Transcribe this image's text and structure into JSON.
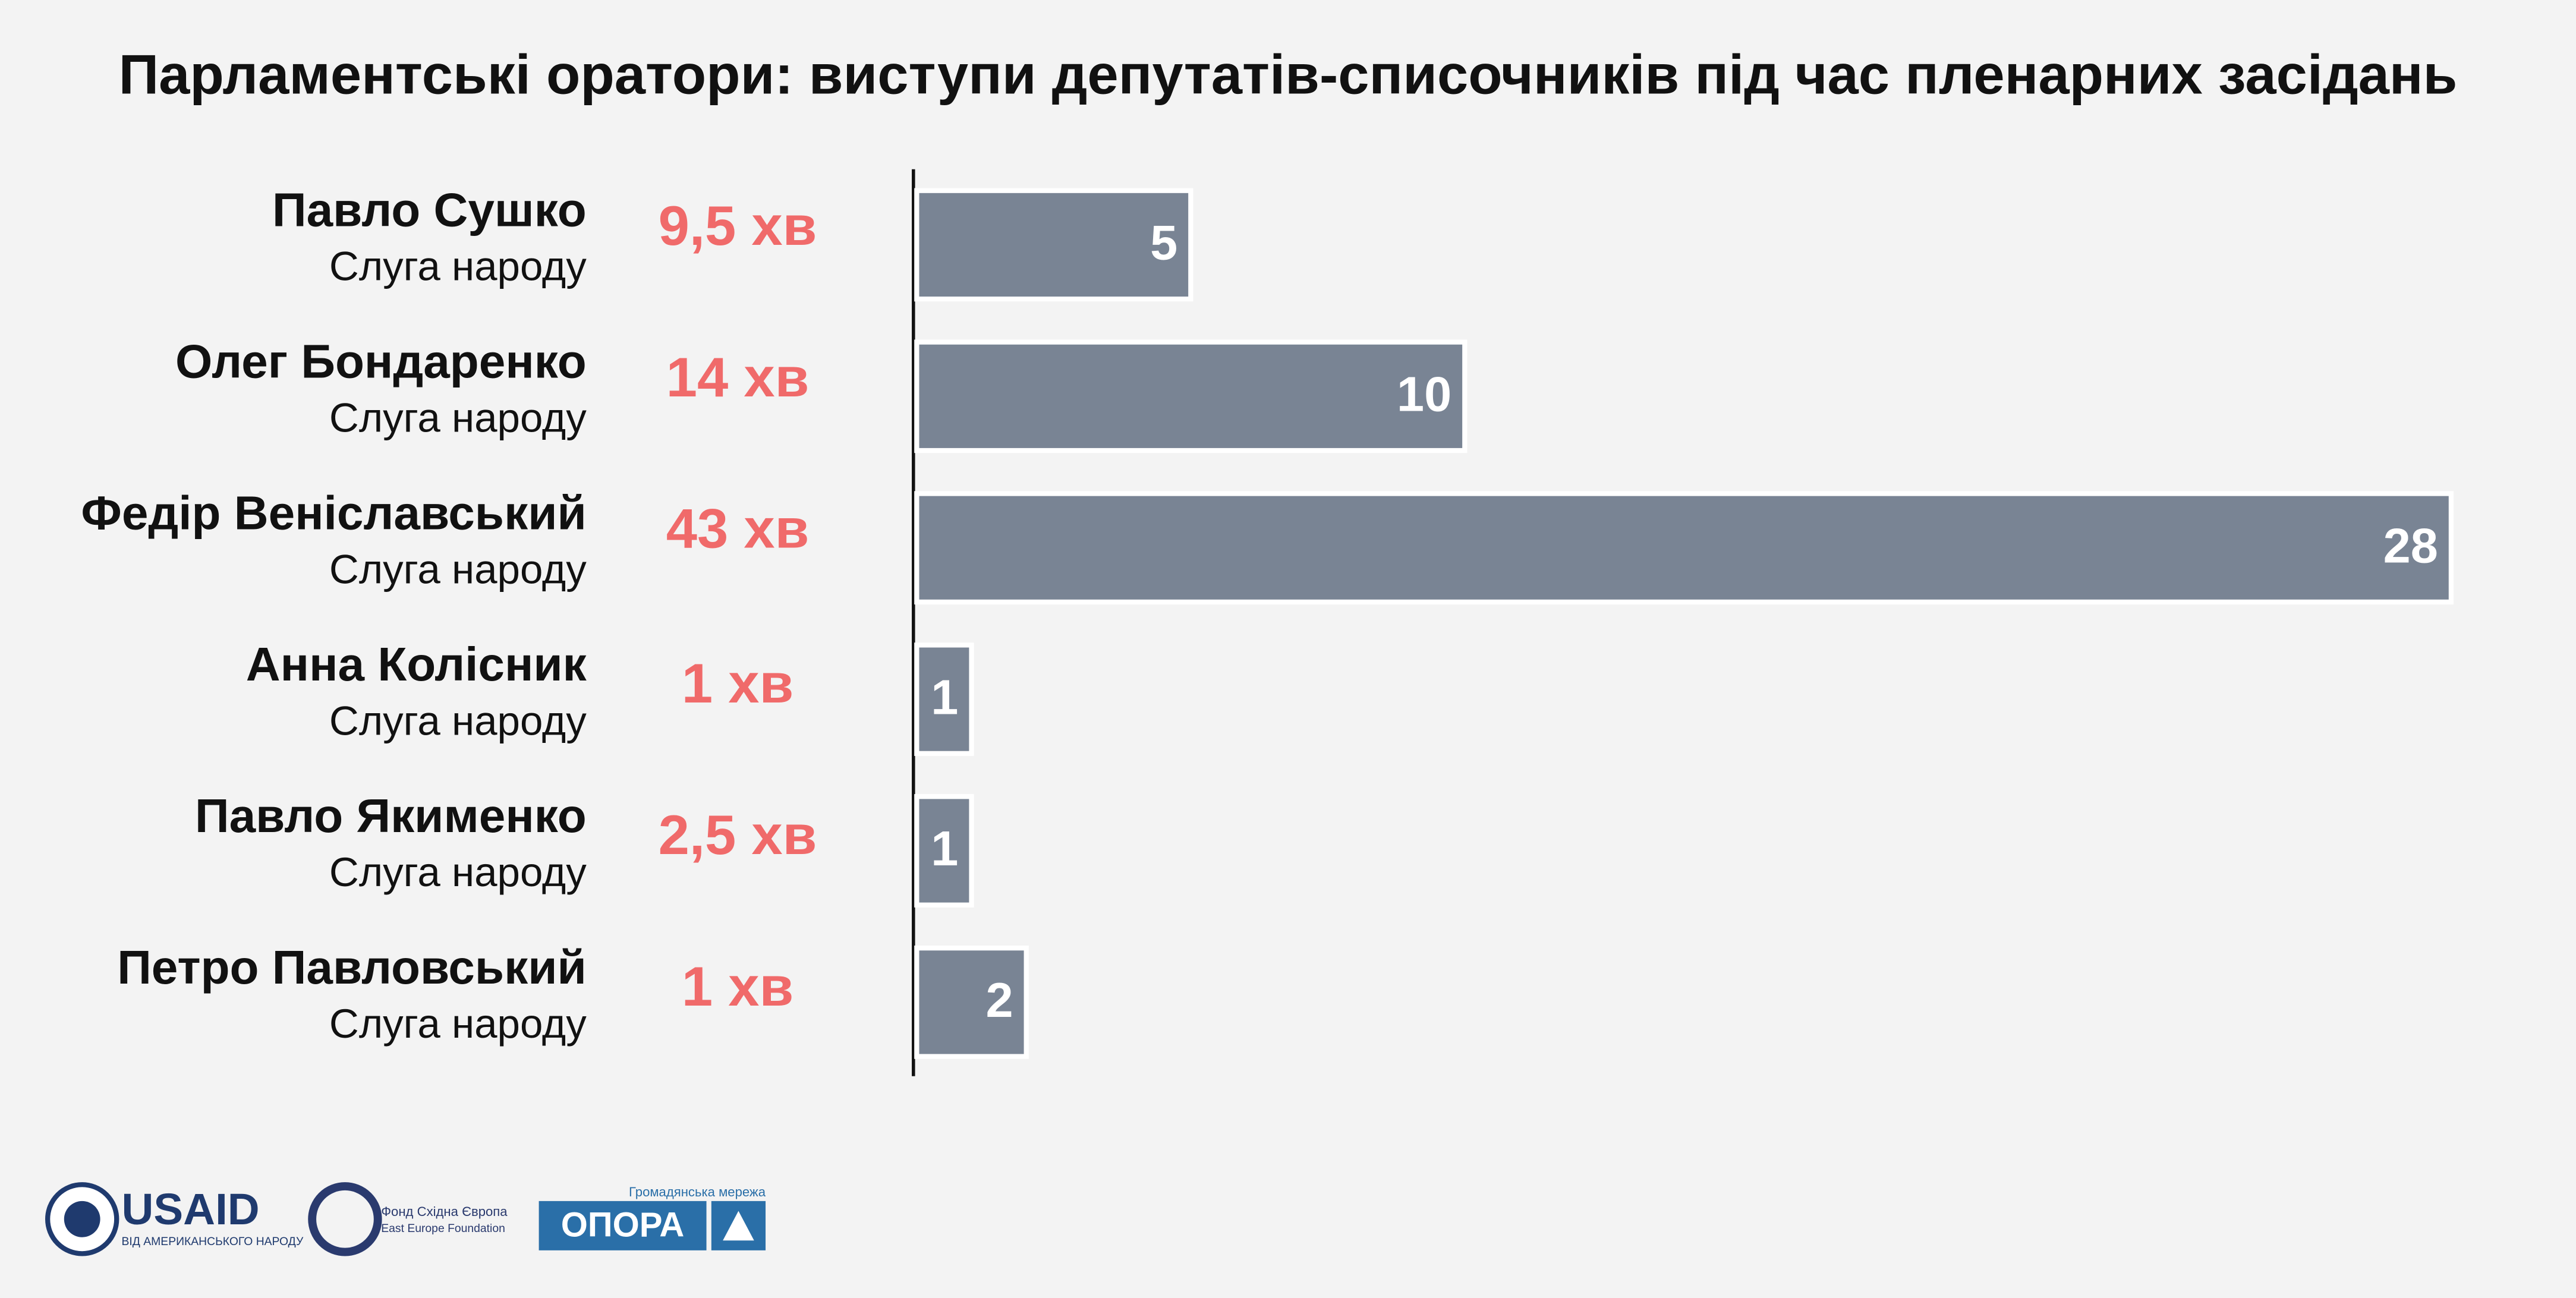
{
  "chart_data": {
    "type": "bar",
    "orientation": "horizontal",
    "title": "Парламентські оратори: виступи депутатів-списочників під час пленарних засідань",
    "categories": [
      "Павло Сушко",
      "Олег Бондаренко",
      "Федір Веніславський",
      "Анна Колісник",
      "Павло Якименко",
      "Петро Павловський"
    ],
    "subtitles": [
      "Слуга народу",
      "Слуга народу",
      "Слуга народу",
      "Слуга народу",
      "Слуга народу",
      "Слуга народу"
    ],
    "annotations": [
      "9,5 хв",
      "14 хв",
      "43 хв",
      "1 хв",
      "2,5 хв",
      "1 хв"
    ],
    "annotation_color": "#f06a6a",
    "values": [
      5,
      10,
      28,
      1,
      1,
      2
    ],
    "color": "#798494",
    "xlim": [
      0,
      28
    ]
  },
  "logos": {
    "usaid": "USAID",
    "usaid_sub": "ВІД АМЕРИКАНСЬКОГО НАРОДУ",
    "eef": "Фонд Східна Європа",
    "eef_sub": "East Europe Foundation",
    "opora_sub": "Громадянська мережа",
    "opora": "ОПОРА"
  }
}
